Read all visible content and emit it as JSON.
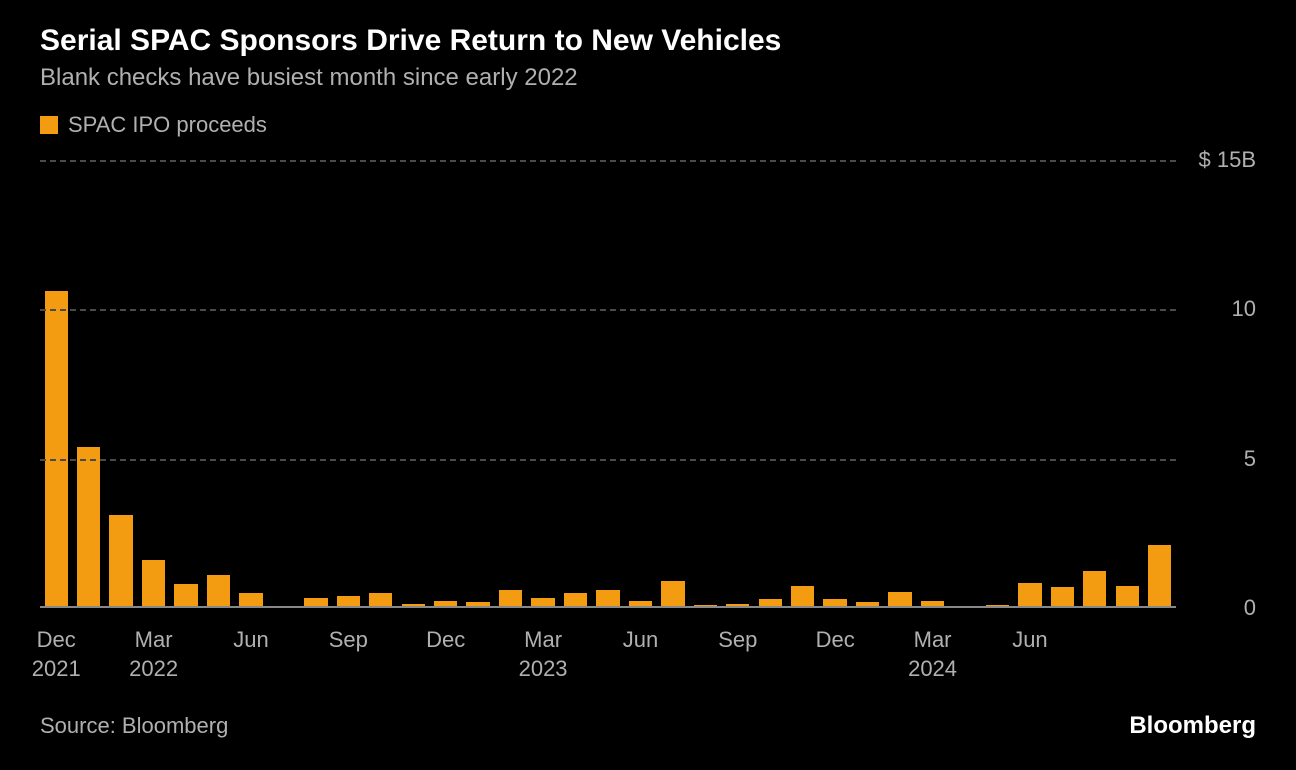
{
  "title": "Serial SPAC Sponsors Drive Return to New Vehicles",
  "subtitle": "Blank checks have busiest month since early 2022",
  "legend": {
    "label": "SPAC IPO proceeds"
  },
  "source": "Source: Bloomberg",
  "brand": "Bloomberg",
  "chart": {
    "type": "bar",
    "bar_color": "#f39c12",
    "background_color": "#000000",
    "grid_color": "#4a4a4a",
    "baseline_color": "#888888",
    "text_color": "#b0b0b0",
    "title_color": "#ffffff",
    "title_fontsize": 30,
    "subtitle_fontsize": 24,
    "label_fontsize": 22,
    "ylim": [
      0,
      15
    ],
    "yticks": [
      {
        "value": 0,
        "label": "0"
      },
      {
        "value": 5,
        "label": "5"
      },
      {
        "value": 10,
        "label": "10"
      },
      {
        "value": 15,
        "label": "$ 15B"
      }
    ],
    "xticks": [
      {
        "index": 0,
        "label": "Dec\n2021"
      },
      {
        "index": 3,
        "label": "Mar\n2022"
      },
      {
        "index": 6,
        "label": "Jun"
      },
      {
        "index": 9,
        "label": "Sep"
      },
      {
        "index": 12,
        "label": "Dec"
      },
      {
        "index": 15,
        "label": "Mar\n2023"
      },
      {
        "index": 18,
        "label": "Jun"
      },
      {
        "index": 21,
        "label": "Sep"
      },
      {
        "index": 24,
        "label": "Dec"
      },
      {
        "index": 27,
        "label": "Mar\n2024"
      },
      {
        "index": 30,
        "label": "Jun"
      }
    ],
    "values": [
      10.6,
      5.4,
      3.1,
      1.6,
      0.8,
      1.1,
      0.5,
      0.08,
      0.35,
      0.4,
      0.5,
      0.15,
      0.25,
      0.2,
      0.6,
      0.35,
      0.5,
      0.6,
      0.25,
      0.9,
      0.1,
      0.15,
      0.3,
      0.75,
      0.3,
      0.2,
      0.55,
      0.25,
      0.05,
      0.1,
      0.85,
      0.7,
      1.25,
      0.75,
      2.1
    ],
    "bar_width_pct": 72
  }
}
